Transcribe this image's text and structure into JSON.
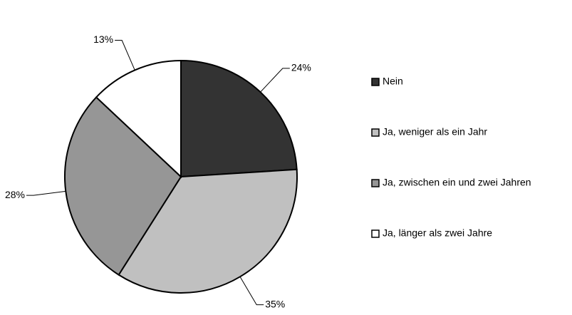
{
  "chart_data": {
    "type": "pie",
    "categories": [
      "Nein",
      "Ja, weniger als ein Jahr",
      "Ja, zwischen ein und zwei Jahren",
      "Ja, länger als zwei Jahre"
    ],
    "values": [
      24,
      35,
      28,
      13
    ],
    "value_labels": [
      "24%",
      "35%",
      "28%",
      "13%"
    ],
    "colors": [
      "#333333",
      "#c0c0c0",
      "#969696",
      "#ffffff"
    ],
    "legend": "right"
  }
}
